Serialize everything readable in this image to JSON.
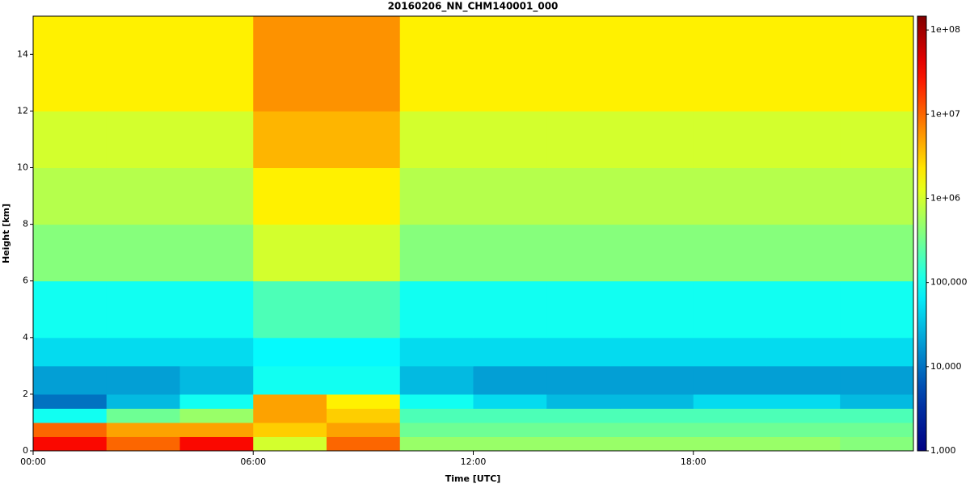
{
  "chart_data": {
    "type": "heatmap",
    "title": "20160206_NN_CHM140001_000",
    "xlabel": "Time [UTC]",
    "ylabel": "Height [km]",
    "xlim": [
      0,
      24
    ],
    "ylim": [
      0,
      15.35
    ],
    "xticks": [
      {
        "value": 0,
        "label": "00:00"
      },
      {
        "value": 6,
        "label": "06:00"
      },
      {
        "value": 12,
        "label": "12:00"
      },
      {
        "value": 18,
        "label": "18:00"
      }
    ],
    "yticks": [
      0,
      2,
      4,
      6,
      8,
      10,
      12,
      14
    ],
    "xbins": [
      0,
      2,
      4,
      6,
      8,
      10,
      12,
      14,
      16,
      18,
      20,
      22,
      24
    ],
    "ybins": [
      0,
      0.5,
      1,
      1.5,
      2,
      3,
      4,
      6,
      8,
      10,
      12,
      15.35
    ],
    "z": [
      [
        30000000,
        10000000,
        30000000,
        1000000,
        10000000,
        500000,
        500000,
        500000,
        500000,
        500000,
        500000,
        400000
      ],
      [
        10000000,
        5000000,
        5000000,
        3000000,
        5000000,
        300000,
        300000,
        300000,
        300000,
        300000,
        300000,
        300000
      ],
      [
        100000,
        300000,
        500000,
        5000000,
        3000000,
        200000,
        200000,
        200000,
        200000,
        200000,
        200000,
        200000
      ],
      [
        10000,
        30000,
        100000,
        5000000,
        2000000,
        100000,
        50000,
        30000,
        30000,
        50000,
        50000,
        30000
      ],
      [
        20000,
        20000,
        30000,
        100000,
        100000,
        30000,
        20000,
        20000,
        20000,
        20000,
        20000,
        20000
      ],
      [
        50000,
        50000,
        50000,
        80000,
        80000,
        50000,
        50000,
        50000,
        50000,
        50000,
        50000,
        50000
      ],
      [
        100000,
        100000,
        100000,
        200000,
        200000,
        100000,
        100000,
        100000,
        100000,
        100000,
        100000,
        100000
      ],
      [
        400000,
        400000,
        400000,
        1000000,
        1000000,
        400000,
        400000,
        400000,
        400000,
        400000,
        400000,
        400000
      ],
      [
        700000,
        700000,
        700000,
        2000000,
        2000000,
        700000,
        700000,
        700000,
        700000,
        700000,
        700000,
        700000
      ],
      [
        1000000,
        1000000,
        1000000,
        4000000,
        4000000,
        1000000,
        1000000,
        1000000,
        1000000,
        1000000,
        1000000,
        1000000
      ],
      [
        2000000,
        2000000,
        2000000,
        6000000,
        6000000,
        2000000,
        2000000,
        2000000,
        2000000,
        2000000,
        2000000,
        2000000
      ]
    ],
    "colorscale": "jet",
    "log_color": true,
    "clim": [
      1000,
      146000000
    ],
    "cticks": [
      {
        "value": 1000,
        "label": "1,000"
      },
      {
        "value": 10000,
        "label": "10,000"
      },
      {
        "value": 100000,
        "label": "100,000"
      },
      {
        "value": 1000000,
        "label": "1e+06"
      },
      {
        "value": 10000000,
        "label": "1e+07"
      },
      {
        "value": 100000000,
        "label": "1e+08"
      }
    ]
  }
}
